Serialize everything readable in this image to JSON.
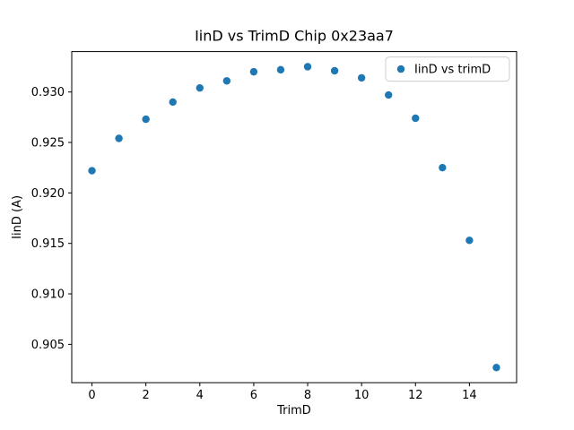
{
  "chart_data": {
    "type": "scatter",
    "title": "IinD vs TrimD Chip 0x23aa7",
    "xlabel": "TrimD",
    "ylabel": "IinD (A)",
    "x": [
      0,
      1,
      2,
      3,
      4,
      5,
      6,
      7,
      8,
      9,
      10,
      11,
      12,
      13,
      14,
      15
    ],
    "y": [
      0.9222,
      0.9254,
      0.9273,
      0.929,
      0.9304,
      0.9311,
      0.932,
      0.9322,
      0.9325,
      0.9321,
      0.9314,
      0.9297,
      0.9274,
      0.9225,
      0.9153,
      0.9027
    ],
    "xlim": [
      -0.75,
      15.75
    ],
    "ylim": [
      0.9012,
      0.934
    ],
    "xticks": [
      0,
      2,
      4,
      6,
      8,
      10,
      12,
      14
    ],
    "yticks": [
      0.905,
      0.91,
      0.915,
      0.92,
      0.925,
      0.93
    ],
    "grid": false,
    "legend": {
      "label": "IinD vs trimD",
      "position": "upper right"
    },
    "marker_color": "#1f77b4",
    "legend_edge_color": "#cccccc"
  }
}
